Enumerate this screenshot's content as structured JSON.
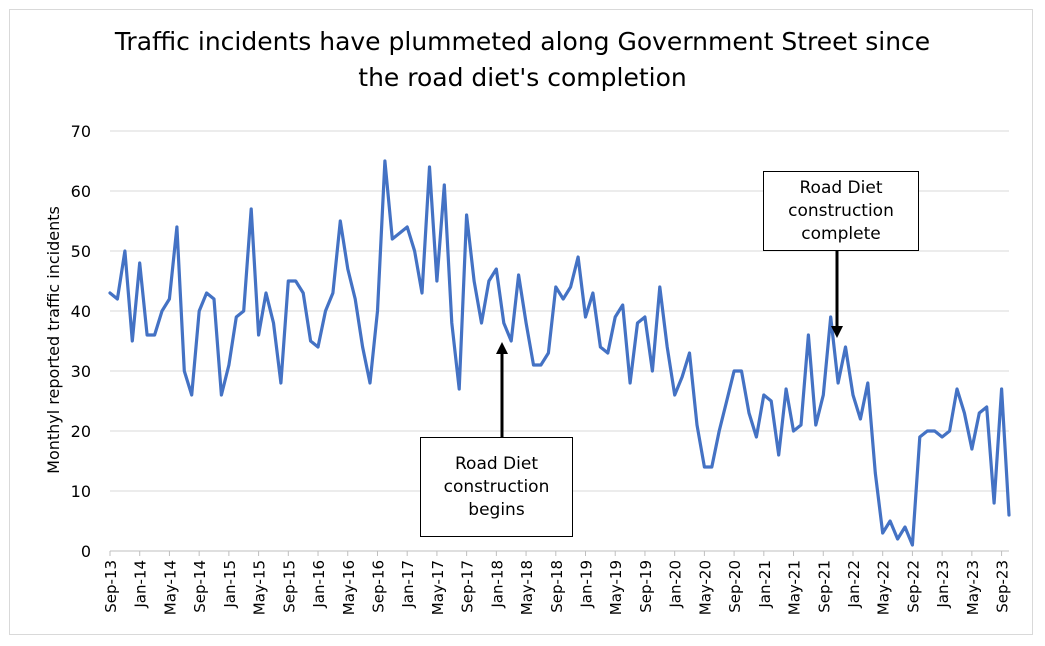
{
  "chart_data": {
    "type": "line",
    "title_lines": [
      "Traffic incidents have plummeted along Government Street since",
      "the road diet's completion"
    ],
    "ylabel": "Monthyl reported traffic incidents",
    "xlabel": "",
    "ylim": [
      0,
      70
    ],
    "yticks": [
      0,
      10,
      20,
      30,
      40,
      50,
      60,
      70
    ],
    "grid": true,
    "legend": "none",
    "line_color": "#4472C4",
    "x_tick_labels": [
      "Sep-13",
      "Jan-14",
      "May-14",
      "Sep-14",
      "Jan-15",
      "May-15",
      "Sep-15",
      "Jan-16",
      "May-16",
      "Sep-16",
      "Jan-17",
      "May-17",
      "Sep-17",
      "Jan-18",
      "May-18",
      "Sep-18",
      "Jan-19",
      "May-19",
      "Sep-19",
      "Jan-20",
      "May-20",
      "Sep-20",
      "Jan-21",
      "May-21",
      "Sep-21",
      "Jan-22",
      "May-22",
      "Sep-22",
      "Jan-23",
      "May-23",
      "Sep-23"
    ],
    "x_start": "Sep-13",
    "x_end": "Sep-23",
    "series": [
      {
        "values": [
          43,
          42,
          50,
          35,
          48,
          36,
          36,
          40,
          42,
          54,
          30,
          26,
          40,
          43,
          42,
          26,
          31,
          39,
          40,
          57,
          36,
          43,
          38,
          28,
          45,
          45,
          43,
          35,
          34,
          40,
          43,
          55,
          47,
          42,
          34,
          28,
          40,
          65,
          52,
          53,
          54,
          50,
          43,
          64,
          45,
          61,
          38,
          27,
          56,
          45,
          38,
          45,
          47,
          38,
          35,
          46,
          38,
          31,
          31,
          33,
          44,
          42,
          44,
          49,
          39,
          43,
          34,
          33,
          39,
          41,
          28,
          38,
          39,
          30,
          44,
          34,
          26,
          29,
          33,
          21,
          14,
          14,
          20,
          25,
          30,
          30,
          23,
          19,
          26,
          25,
          16,
          27,
          20,
          21,
          36,
          21,
          26,
          39,
          28,
          34,
          26,
          22,
          28,
          13,
          3,
          5,
          2,
          4,
          1,
          19,
          20,
          20,
          19,
          20,
          27,
          23,
          17,
          23,
          24,
          8,
          27,
          6
        ]
      }
    ],
    "annotations": [
      {
        "text": "Road Diet construction begins",
        "lines": [
          "Road Diet",
          "construction",
          "begins"
        ],
        "points_to": "Jan-18",
        "value": 35
      },
      {
        "text": "Road Diet construction complete",
        "lines": [
          "Road Diet",
          "construction",
          "complete"
        ],
        "points_to": "Oct-21",
        "value": 33
      }
    ]
  }
}
